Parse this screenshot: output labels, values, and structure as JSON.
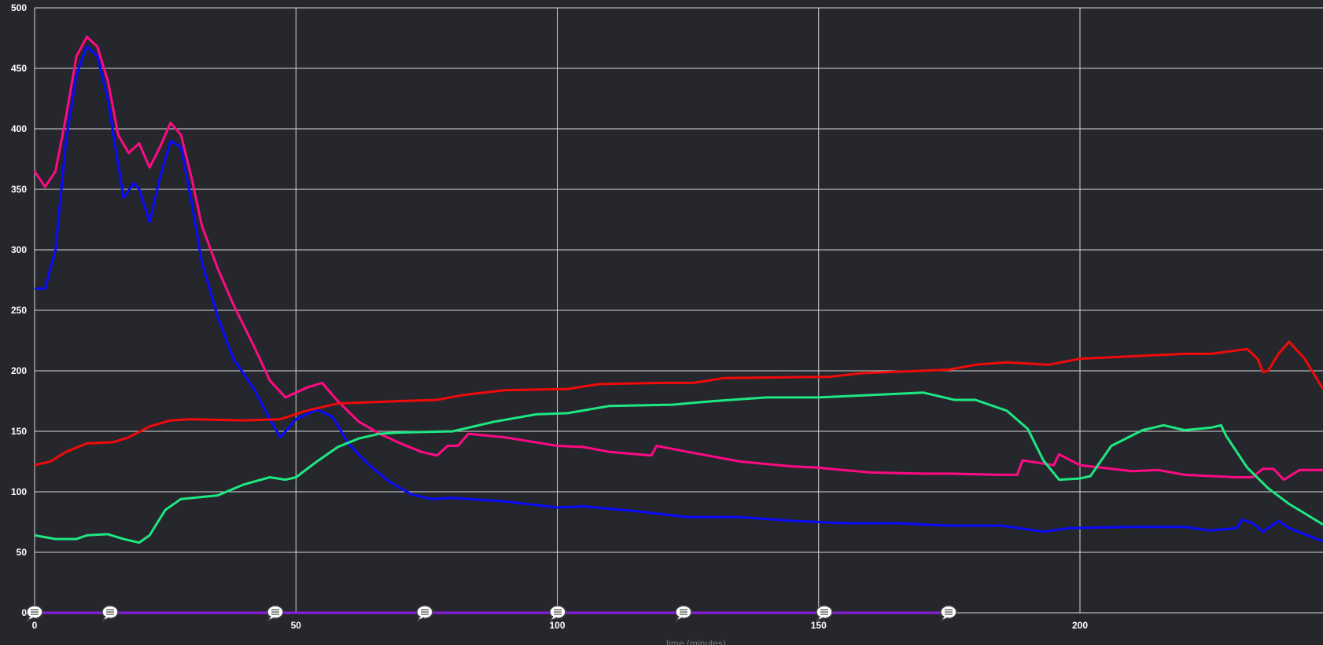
{
  "chart_data": {
    "type": "line",
    "xlabel": "time (minutes)",
    "xlim": [
      0,
      246.5
    ],
    "ylim": [
      0,
      500
    ],
    "xticks": [
      0,
      50,
      100,
      150,
      200
    ],
    "yticks": [
      0,
      50,
      100,
      150,
      200,
      250,
      300,
      350,
      400,
      450,
      500
    ],
    "grid": true,
    "series": [
      {
        "color": "#ff0a84",
        "x": [
          0,
          2,
          4,
          6,
          8,
          10,
          12,
          14,
          16,
          18,
          20,
          22,
          24,
          26,
          28,
          30,
          32,
          35,
          38,
          42,
          45,
          48,
          52,
          55,
          58,
          62,
          66,
          70,
          74,
          77,
          79,
          81,
          83,
          90,
          100,
          105,
          110,
          118,
          119,
          125,
          135,
          145,
          150,
          152,
          160,
          170,
          175,
          185,
          188,
          189,
          192,
          195,
          196,
          200,
          210,
          215,
          220,
          230,
          233,
          235,
          237,
          239,
          242,
          246.5
        ],
        "values": [
          365,
          352,
          365,
          410,
          460,
          476,
          468,
          440,
          395,
          380,
          388,
          368,
          385,
          405,
          395,
          360,
          320,
          285,
          255,
          220,
          192,
          178,
          186,
          190,
          175,
          158,
          148,
          140,
          133,
          130,
          138,
          138,
          148,
          145,
          138,
          137,
          133,
          130,
          138,
          133,
          125,
          121,
          120,
          119,
          116,
          115,
          115,
          114,
          114,
          126,
          124,
          122,
          131,
          122,
          117,
          118,
          114,
          112,
          112,
          119,
          119,
          110,
          118,
          118
        ]
      },
      {
        "color": "#0a0aff",
        "x": [
          0,
          2,
          4,
          6,
          8,
          10,
          12,
          14,
          16,
          17,
          19,
          20,
          22,
          24,
          26,
          28,
          30,
          32,
          35,
          38,
          42,
          45,
          47,
          50,
          54,
          57,
          60,
          64,
          68,
          72,
          76,
          80,
          90,
          100,
          105,
          115,
          125,
          135,
          145,
          155,
          165,
          175,
          185,
          193,
          198,
          210,
          220,
          225,
          230,
          231,
          233,
          235,
          238,
          240,
          246.5
        ],
        "values": [
          268,
          268,
          300,
          390,
          445,
          468,
          460,
          425,
          370,
          343,
          355,
          350,
          323,
          360,
          390,
          385,
          340,
          290,
          245,
          210,
          185,
          160,
          145,
          160,
          168,
          162,
          140,
          122,
          108,
          98,
          94,
          95,
          92,
          87,
          88,
          84,
          79,
          79,
          76,
          74,
          74,
          72,
          72,
          67,
          70,
          71,
          71,
          68,
          70,
          77,
          74,
          67,
          76,
          70,
          59
        ]
      },
      {
        "color": "#f00a0a",
        "x": [
          0,
          3,
          6,
          10,
          15,
          18,
          22,
          26,
          30,
          40,
          47,
          52,
          58,
          70,
          77,
          82,
          90,
          102,
          108,
          120,
          126,
          132,
          150,
          152,
          158,
          175,
          180,
          186,
          194,
          200,
          210,
          220,
          225,
          232,
          234,
          235,
          236,
          238,
          240,
          243,
          246.5
        ],
        "values": [
          122,
          125,
          133,
          140,
          141,
          145,
          154,
          159,
          160,
          159,
          160,
          167,
          173,
          175,
          176,
          180,
          184,
          185,
          189,
          190,
          190,
          194,
          195,
          195,
          198,
          201,
          205,
          207,
          205,
          210,
          212,
          214,
          214,
          218,
          210,
          199,
          200,
          214,
          224,
          210,
          185
        ]
      },
      {
        "color": "#1ee882",
        "x": [
          0,
          4,
          8,
          10,
          14,
          17,
          20,
          22,
          25,
          28,
          35,
          40,
          45,
          48,
          50,
          54,
          58,
          62,
          66,
          70,
          80,
          88,
          96,
          102,
          110,
          122,
          130,
          140,
          150,
          170,
          176,
          180,
          186,
          190,
          193,
          196,
          200,
          202,
          206,
          212,
          216,
          220,
          225,
          227,
          228,
          232,
          236,
          240,
          246.5
        ],
        "values": [
          64,
          61,
          61,
          64,
          65,
          61,
          58,
          64,
          85,
          94,
          97,
          106,
          112,
          110,
          112,
          125,
          137,
          144,
          148,
          149,
          150,
          158,
          164,
          165,
          171,
          172,
          175,
          178,
          178,
          182,
          176,
          176,
          167,
          152,
          126,
          110,
          111,
          113,
          138,
          151,
          155,
          151,
          153,
          155,
          146,
          120,
          103,
          90,
          73
        ]
      },
      {
        "color": "#8a1ee0",
        "x": [
          0,
          174
        ],
        "values": [
          0,
          0
        ]
      }
    ]
  }
}
